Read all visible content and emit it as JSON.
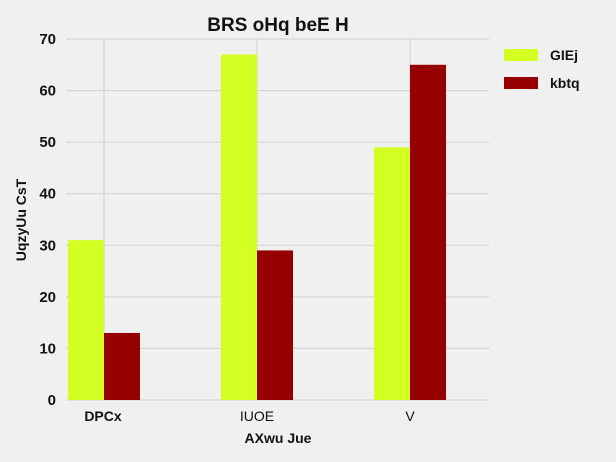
{
  "chart_data": {
    "type": "bar",
    "title": "BRS  oHq beE H",
    "xlabel": "AXwu Jue",
    "ylabel": "UqzyUu CsT",
    "categories": [
      "DPCx",
      "IUOE",
      "V"
    ],
    "ylim": [
      0,
      70
    ],
    "yticks": [
      0,
      10,
      20,
      30,
      40,
      50,
      60,
      70
    ],
    "grid": true,
    "legend_position": "top-right",
    "series": [
      {
        "name": "GIEj",
        "color": "#d4ff22",
        "values": [
          31,
          67,
          49
        ]
      },
      {
        "name": "kbtq",
        "color": "#960000",
        "values": [
          13,
          29,
          65
        ]
      }
    ]
  }
}
